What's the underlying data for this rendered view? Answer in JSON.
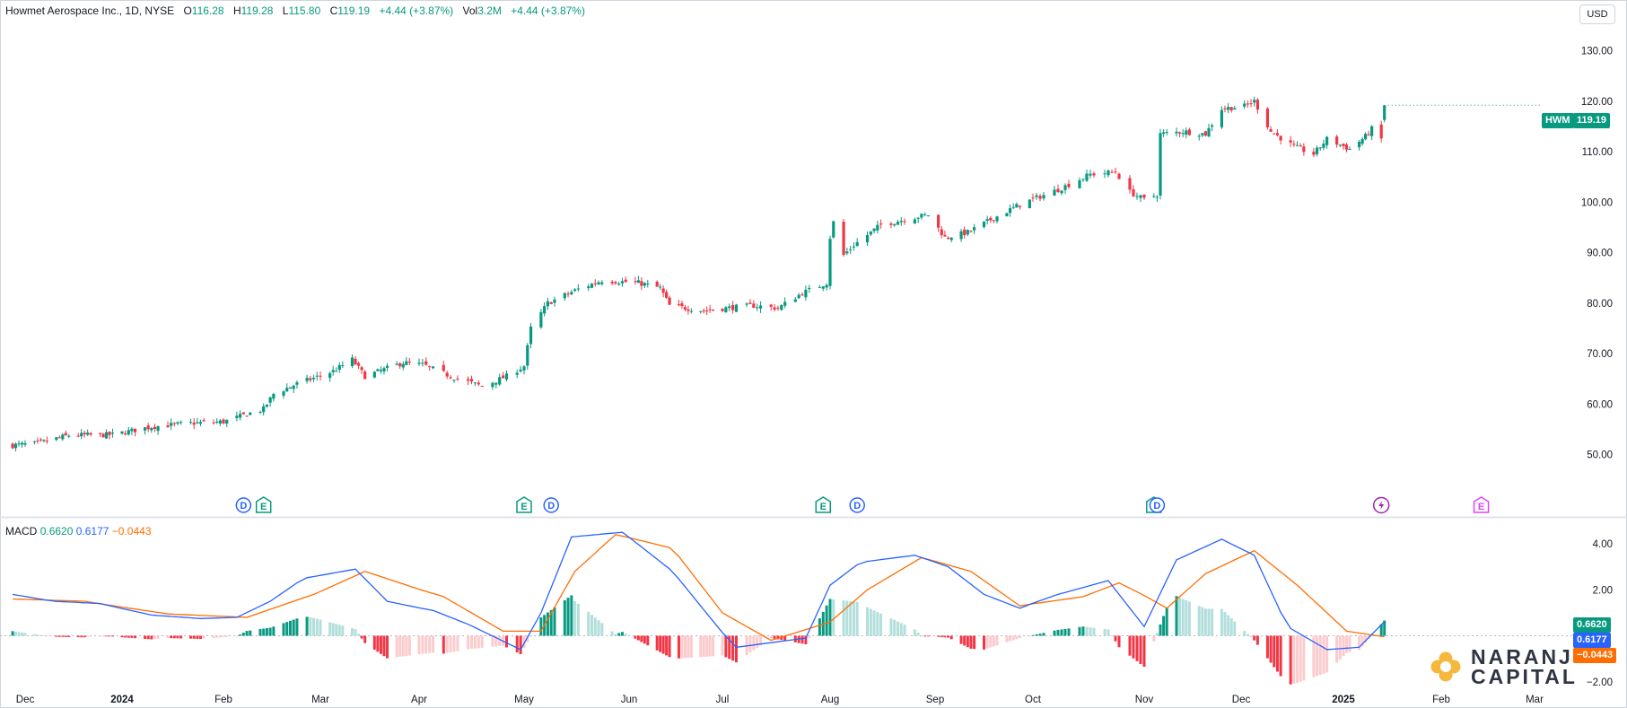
{
  "header": {
    "symbol": "Howmet Aerospace Inc., 1D, NYSE",
    "o_label": "O",
    "o": "116.28",
    "h_label": "H",
    "h": "119.28",
    "l_label": "L",
    "l": "115.80",
    "c_label": "C",
    "c": "119.19",
    "change": "+4.44 (+3.87%)",
    "vol_label": "Vol",
    "vol": "3.2M",
    "vol_change": "+4.44 (+3.87%)"
  },
  "currency": "USD",
  "last_price": {
    "ticker": "HWM",
    "value": "119.19"
  },
  "macd": {
    "label": "MACD",
    "hist": "0.6620",
    "macd": "0.6177",
    "signal": "−0.0443"
  },
  "logo": {
    "line1": "NARANJ",
    "line2": "CAPITAL"
  },
  "colors": {
    "up": "#089981",
    "down": "#f23645",
    "up_light": "#b2dfdb",
    "down_light": "#fccbcd",
    "macd_line": "#2962ff",
    "signal_line": "#ff6d00",
    "logo_gold": "#f5b83d"
  },
  "chart_data": [
    {
      "type": "candlestick",
      "title": "Howmet Aerospace Inc., 1D, NYSE",
      "y_ticks": [
        "130.00",
        "120.00",
        "110.00",
        "100.00",
        "90.00",
        "80.00",
        "70.00",
        "60.00",
        "50.00"
      ],
      "ylim": [
        43,
        137
      ],
      "x_ticks": [
        "Dec",
        "2024",
        "Feb",
        "Mar",
        "Apr",
        "May",
        "Jun",
        "Jul",
        "Aug",
        "Sep",
        "Oct",
        "Nov",
        "Dec",
        "2025",
        "Feb",
        "Mar"
      ],
      "x_tick_bold": [
        "2024",
        "2025"
      ],
      "close_path": [
        [
          "2023-11-27",
          51.8
        ],
        [
          "2023-12-05",
          52.2
        ],
        [
          "2023-12-15",
          53.8
        ],
        [
          "2023-12-29",
          53.9
        ],
        [
          "2024-01-10",
          55.5
        ],
        [
          "2024-01-22",
          56.2
        ],
        [
          "2024-02-01",
          56.5
        ],
        [
          "2024-02-13",
          59.0
        ],
        [
          "2024-02-16",
          62.0
        ],
        [
          "2024-02-23",
          64.0
        ],
        [
          "2024-03-05",
          66.5
        ],
        [
          "2024-03-11",
          68.8
        ],
        [
          "2024-03-15",
          65.5
        ],
        [
          "2024-03-27",
          68.2
        ],
        [
          "2024-04-02",
          67.8
        ],
        [
          "2024-04-10",
          65.5
        ],
        [
          "2024-04-19",
          63.5
        ],
        [
          "2024-04-26",
          65.5
        ],
        [
          "2024-05-01",
          67.5
        ],
        [
          "2024-05-03",
          75.0
        ],
        [
          "2024-05-08",
          80.0
        ],
        [
          "2024-05-16",
          82.5
        ],
        [
          "2024-05-24",
          84.5
        ],
        [
          "2024-06-04",
          84.0
        ],
        [
          "2024-06-11",
          83.0
        ],
        [
          "2024-06-14",
          79.5
        ],
        [
          "2024-06-25",
          78.5
        ],
        [
          "2024-07-02",
          79.0
        ],
        [
          "2024-07-10",
          79.5
        ],
        [
          "2024-07-17",
          79.0
        ],
        [
          "2024-07-24",
          82.0
        ],
        [
          "2024-07-31",
          84.0
        ],
        [
          "2024-08-01",
          93.0
        ],
        [
          "2024-08-02",
          96.0
        ],
        [
          "2024-08-05",
          89.5
        ],
        [
          "2024-08-08",
          91.5
        ],
        [
          "2024-08-16",
          95.5
        ],
        [
          "2024-08-26",
          97.0
        ],
        [
          "2024-08-30",
          97.5
        ],
        [
          "2024-09-04",
          93.0
        ],
        [
          "2024-09-11",
          94.0
        ],
        [
          "2024-09-18",
          96.5
        ],
        [
          "2024-09-27",
          99.5
        ],
        [
          "2024-10-08",
          102.5
        ],
        [
          "2024-10-17",
          105.5
        ],
        [
          "2024-10-24",
          106.0
        ],
        [
          "2024-10-28",
          102.0
        ],
        [
          "2024-11-01",
          100.5
        ],
        [
          "2024-11-05",
          101.5
        ],
        [
          "2024-11-06",
          113.5
        ],
        [
          "2024-11-13",
          114.0
        ],
        [
          "2024-11-20",
          113.5
        ],
        [
          "2024-11-25",
          118.5
        ],
        [
          "2024-12-02",
          119.0
        ],
        [
          "2024-12-05",
          120.0
        ],
        [
          "2024-12-10",
          114.0
        ],
        [
          "2024-12-17",
          111.0
        ],
        [
          "2024-12-23",
          109.5
        ],
        [
          "2024-12-27",
          112.5
        ],
        [
          "2025-01-03",
          110.5
        ],
        [
          "2025-01-08",
          113.0
        ],
        [
          "2025-01-10",
          114.5
        ],
        [
          "2025-01-13",
          112.5
        ],
        [
          "2025-01-14",
          119.19
        ]
      ],
      "last_candle": {
        "date": "2025-01-14",
        "open": 116.28,
        "high": 119.28,
        "low": 115.8,
        "close": 119.19
      },
      "events": [
        {
          "date": "2024-02-07",
          "kind": "D"
        },
        {
          "date": "2024-02-13",
          "kind": "E"
        },
        {
          "date": "2024-05-01",
          "kind": "E"
        },
        {
          "date": "2024-05-09",
          "kind": "D"
        },
        {
          "date": "2024-07-30",
          "kind": "E"
        },
        {
          "date": "2024-08-09",
          "kind": "D"
        },
        {
          "date": "2024-11-04",
          "kind": "E"
        },
        {
          "date": "2024-11-05",
          "kind": "D"
        },
        {
          "date": "2025-01-13",
          "kind": "split"
        },
        {
          "date": "2025-02-13",
          "kind": "E-upcoming"
        }
      ]
    },
    {
      "type": "macd",
      "title": "MACD",
      "y_ticks": [
        "4.00",
        "2.00",
        "−2.00"
      ],
      "ylim": [
        -2.2,
        5.0
      ],
      "macd_path": [
        [
          "2023-11-27",
          1.8
        ],
        [
          "2023-12-10",
          1.5
        ],
        [
          "2023-12-25",
          1.4
        ],
        [
          "2024-01-10",
          0.9
        ],
        [
          "2024-01-25",
          0.75
        ],
        [
          "2024-02-05",
          0.8
        ],
        [
          "2024-02-15",
          1.5
        ],
        [
          "2024-02-25",
          2.5
        ],
        [
          "2024-03-12",
          2.9
        ],
        [
          "2024-03-22",
          1.5
        ],
        [
          "2024-04-05",
          1.1
        ],
        [
          "2024-04-15",
          0.5
        ],
        [
          "2024-04-30",
          -0.6
        ],
        [
          "2024-05-06",
          1.0
        ],
        [
          "2024-05-15",
          4.3
        ],
        [
          "2024-05-30",
          4.5
        ],
        [
          "2024-06-15",
          2.8
        ],
        [
          "2024-06-30",
          0.3
        ],
        [
          "2024-07-05",
          -0.5
        ],
        [
          "2024-07-15",
          -0.3
        ],
        [
          "2024-07-25",
          -0.1
        ],
        [
          "2024-08-01",
          2.2
        ],
        [
          "2024-08-10",
          3.2
        ],
        [
          "2024-08-26",
          3.5
        ],
        [
          "2024-09-05",
          3.0
        ],
        [
          "2024-09-16",
          1.8
        ],
        [
          "2024-09-27",
          1.2
        ],
        [
          "2024-10-08",
          1.8
        ],
        [
          "2024-10-22",
          2.4
        ],
        [
          "2024-11-01",
          0.4
        ],
        [
          "2024-11-11",
          3.3
        ],
        [
          "2024-11-25",
          4.2
        ],
        [
          "2024-12-05",
          3.5
        ],
        [
          "2024-12-15",
          0.4
        ],
        [
          "2024-12-27",
          -0.6
        ],
        [
          "2025-01-06",
          -0.5
        ],
        [
          "2025-01-14",
          0.6177
        ]
      ],
      "signal_path": [
        [
          "2023-11-27",
          1.6
        ],
        [
          "2023-12-20",
          1.5
        ],
        [
          "2024-01-15",
          0.95
        ],
        [
          "2024-02-08",
          0.8
        ],
        [
          "2024-02-28",
          1.8
        ],
        [
          "2024-03-15",
          2.8
        ],
        [
          "2024-04-08",
          1.7
        ],
        [
          "2024-04-25",
          0.2
        ],
        [
          "2024-05-06",
          0.2
        ],
        [
          "2024-05-16",
          2.8
        ],
        [
          "2024-05-28",
          4.4
        ],
        [
          "2024-06-15",
          3.8
        ],
        [
          "2024-07-01",
          1.0
        ],
        [
          "2024-07-15",
          -0.2
        ],
        [
          "2024-08-01",
          0.6
        ],
        [
          "2024-08-12",
          2.0
        ],
        [
          "2024-08-28",
          3.4
        ],
        [
          "2024-09-12",
          2.8
        ],
        [
          "2024-09-27",
          1.3
        ],
        [
          "2024-10-15",
          1.7
        ],
        [
          "2024-10-25",
          2.3
        ],
        [
          "2024-11-08",
          1.2
        ],
        [
          "2024-11-20",
          2.7
        ],
        [
          "2024-12-05",
          3.7
        ],
        [
          "2024-12-18",
          2.2
        ],
        [
          "2025-01-02",
          0.2
        ],
        [
          "2025-01-14",
          -0.0443
        ]
      ]
    }
  ]
}
